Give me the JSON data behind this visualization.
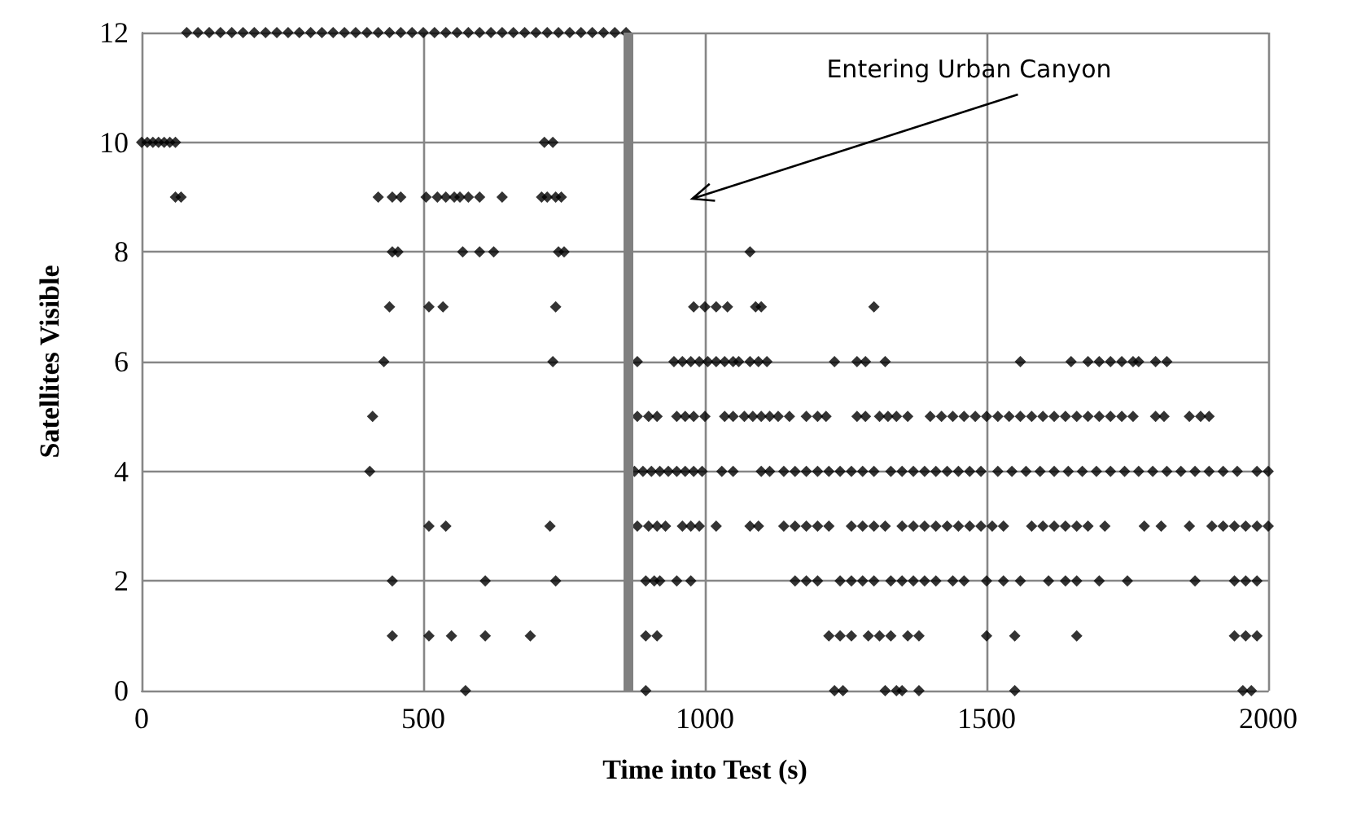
{
  "chart_data": {
    "type": "scatter",
    "xlabel": "Time into Test (s)",
    "ylabel": "Satellites Visible",
    "xlim": [
      0,
      2000
    ],
    "xticks": [
      0,
      500,
      1000,
      1500,
      2000
    ],
    "ylim": [
      0,
      12
    ],
    "yticks": [
      0,
      2,
      4,
      6,
      8,
      10,
      12
    ],
    "grid": true,
    "marker": "diamond",
    "ref_lines": [
      {
        "axis": "x",
        "value": 862,
        "color": "#808080"
      }
    ],
    "annotations": [
      "Entering Urban Canyon"
    ],
    "series": [
      {
        "color": "#000000",
        "x": [
          80,
          100,
          120,
          140,
          160,
          180,
          200,
          220,
          240,
          260,
          280,
          300,
          320,
          340,
          360,
          380,
          400,
          420,
          440,
          460,
          480,
          500,
          520,
          540,
          560,
          580,
          600,
          620,
          640,
          660,
          680,
          700,
          720,
          740,
          760,
          780,
          800,
          820,
          840,
          860,
          0,
          10,
          20,
          30,
          40,
          50,
          60,
          715,
          730,
          60,
          70,
          420,
          445,
          460,
          505,
          525,
          540,
          555,
          565,
          580,
          600,
          640,
          710,
          720,
          735,
          745,
          445,
          455,
          570,
          600,
          625,
          740,
          750,
          1080,
          440,
          510,
          535,
          735,
          980,
          1000,
          1020,
          1040,
          1090,
          1100,
          1300,
          430,
          730,
          880,
          945,
          960,
          975,
          990,
          1005,
          1020,
          1035,
          1050,
          1060,
          1080,
          1095,
          1110,
          1230,
          1270,
          1285,
          1320,
          1560,
          1650,
          1680,
          1700,
          1720,
          1740,
          1760,
          1770,
          1800,
          1820,
          410,
          880,
          900,
          915,
          950,
          965,
          980,
          1000,
          1035,
          1050,
          1070,
          1085,
          1100,
          1115,
          1130,
          1150,
          1180,
          1200,
          1215,
          1270,
          1285,
          1310,
          1325,
          1340,
          1360,
          1400,
          1420,
          1440,
          1460,
          1480,
          1500,
          1520,
          1540,
          1560,
          1580,
          1600,
          1620,
          1640,
          1660,
          1680,
          1700,
          1720,
          1740,
          1760,
          1800,
          1815,
          1860,
          1880,
          1895,
          405,
          875,
          890,
          905,
          920,
          935,
          950,
          965,
          980,
          995,
          1030,
          1050,
          1100,
          1115,
          1140,
          1160,
          1180,
          1200,
          1220,
          1240,
          1260,
          1280,
          1300,
          1330,
          1350,
          1370,
          1390,
          1410,
          1430,
          1450,
          1470,
          1490,
          1520,
          1545,
          1570,
          1595,
          1620,
          1645,
          1670,
          1695,
          1720,
          1745,
          1770,
          1795,
          1820,
          1845,
          1870,
          1895,
          1920,
          1945,
          1980,
          2000,
          510,
          540,
          725,
          880,
          900,
          915,
          930,
          960,
          975,
          990,
          1020,
          1080,
          1095,
          1140,
          1160,
          1180,
          1200,
          1220,
          1260,
          1280,
          1300,
          1320,
          1350,
          1370,
          1390,
          1410,
          1430,
          1450,
          1470,
          1490,
          1510,
          1530,
          1580,
          1600,
          1620,
          1640,
          1660,
          1680,
          1710,
          1780,
          1810,
          1860,
          1900,
          1920,
          1940,
          1960,
          1980,
          2000,
          445,
          610,
          735,
          895,
          910,
          920,
          950,
          975,
          1160,
          1180,
          1200,
          1240,
          1260,
          1280,
          1300,
          1330,
          1350,
          1370,
          1390,
          1410,
          1440,
          1460,
          1500,
          1530,
          1560,
          1610,
          1640,
          1660,
          1700,
          1750,
          1870,
          1940,
          1960,
          1980,
          445,
          510,
          550,
          610,
          690,
          895,
          915,
          1220,
          1240,
          1260,
          1290,
          1310,
          1330,
          1360,
          1380,
          1500,
          1550,
          1660,
          1940,
          1960,
          1980,
          575,
          895,
          1230,
          1245,
          1320,
          1340,
          1350,
          1380,
          1550,
          1955,
          1970
        ],
        "values": [
          12,
          12,
          12,
          12,
          12,
          12,
          12,
          12,
          12,
          12,
          12,
          12,
          12,
          12,
          12,
          12,
          12,
          12,
          12,
          12,
          12,
          12,
          12,
          12,
          12,
          12,
          12,
          12,
          12,
          12,
          12,
          12,
          12,
          12,
          12,
          12,
          12,
          12,
          12,
          12,
          10,
          10,
          10,
          10,
          10,
          10,
          10,
          10,
          10,
          9,
          9,
          9,
          9,
          9,
          9,
          9,
          9,
          9,
          9,
          9,
          9,
          9,
          9,
          9,
          9,
          9,
          8,
          8,
          8,
          8,
          8,
          8,
          8,
          8,
          7,
          7,
          7,
          7,
          7,
          7,
          7,
          7,
          7,
          7,
          7,
          6,
          6,
          6,
          6,
          6,
          6,
          6,
          6,
          6,
          6,
          6,
          6,
          6,
          6,
          6,
          6,
          6,
          6,
          6,
          6,
          6,
          6,
          6,
          6,
          6,
          6,
          6,
          6,
          6,
          5,
          5,
          5,
          5,
          5,
          5,
          5,
          5,
          5,
          5,
          5,
          5,
          5,
          5,
          5,
          5,
          5,
          5,
          5,
          5,
          5,
          5,
          5,
          5,
          5,
          5,
          5,
          5,
          5,
          5,
          5,
          5,
          5,
          5,
          5,
          5,
          5,
          5,
          5,
          5,
          5,
          5,
          5,
          5,
          5,
          5,
          5,
          5,
          5,
          4,
          4,
          4,
          4,
          4,
          4,
          4,
          4,
          4,
          4,
          4,
          4,
          4,
          4,
          4,
          4,
          4,
          4,
          4,
          4,
          4,
          4,
          4,
          4,
          4,
          4,
          4,
          4,
          4,
          4,
          4,
          4,
          4,
          4,
          4,
          4,
          4,
          4,
          4,
          4,
          4,
          4,
          4,
          4,
          4,
          4,
          4,
          4,
          4,
          4,
          4,
          4,
          3,
          3,
          3,
          3,
          3,
          3,
          3,
          3,
          3,
          3,
          3,
          3,
          3,
          3,
          3,
          3,
          3,
          3,
          3,
          3,
          3,
          3,
          3,
          3,
          3,
          3,
          3,
          3,
          3,
          3,
          3,
          3,
          3,
          3,
          3,
          3,
          3,
          3,
          3,
          3,
          3,
          3,
          3,
          3,
          3,
          3,
          3,
          3,
          2,
          2,
          2,
          2,
          2,
          2,
          2,
          2,
          2,
          2,
          2,
          2,
          2,
          2,
          2,
          2,
          2,
          2,
          2,
          2,
          2,
          2,
          2,
          2,
          2,
          2,
          2,
          2,
          2,
          2,
          2,
          2,
          2,
          2,
          1,
          1,
          1,
          1,
          1,
          1,
          1,
          1,
          1,
          1,
          1,
          1,
          1,
          1,
          1,
          1,
          1,
          1,
          1,
          1,
          1,
          0,
          0,
          0,
          0,
          0,
          0,
          0,
          0,
          0,
          0,
          0
        ]
      }
    ]
  }
}
